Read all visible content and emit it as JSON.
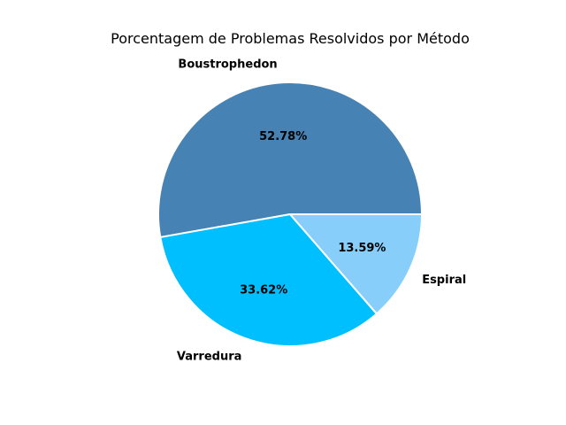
{
  "chart_data": {
    "type": "pie",
    "title": "Porcentagem de Problemas Resolvidos por Método",
    "categories": [
      "Boustrophedon",
      "Varredura",
      "Espiral"
    ],
    "values": [
      52.78,
      33.62,
      13.59
    ],
    "value_labels": [
      "52.78%",
      "33.62%",
      "13.59%"
    ],
    "colors": [
      "#4682b4",
      "#00bfff",
      "#87cefa"
    ],
    "start_angle_deg": 0,
    "direction": "counterclockwise",
    "legend": "none"
  }
}
